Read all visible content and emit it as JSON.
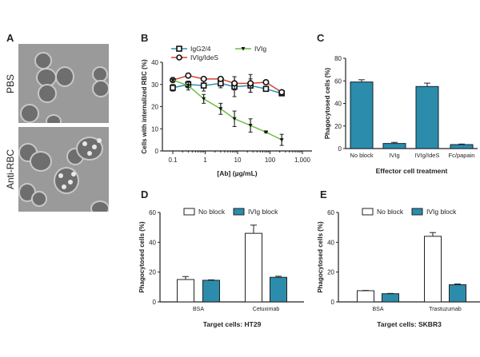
{
  "panels": {
    "a": "A",
    "b": "B",
    "c": "C",
    "d": "D",
    "e": "E"
  },
  "panel_a": {
    "row_labels": [
      "PBS",
      "Anti-RBC"
    ]
  },
  "colors": {
    "teal": "#2a8fb0",
    "red": "#d9412c",
    "green": "#6cbf3f",
    "bar_blue": "#2c8cab",
    "axis": "#222222"
  },
  "chart_data": [
    {
      "id": "B",
      "type": "line",
      "xscale": "log",
      "xlabel": "[Ab] (µg/mL)",
      "ylabel": "Cells with internalized RBC (%)",
      "xticks": [
        "0.1",
        "1",
        "10",
        "100",
        "1,000"
      ],
      "xlim": [
        0.07,
        1000
      ],
      "ylim": [
        0,
        40
      ],
      "yticks": [
        "0",
        "10",
        "20",
        "30",
        "40"
      ],
      "legend_placement": "top",
      "x": [
        0.1,
        0.3,
        0.9,
        3,
        8,
        25,
        75,
        230
      ],
      "series": [
        {
          "name": "IgG2/4",
          "color": "#2a8fb0",
          "marker": "open-square",
          "values": [
            28.5,
            30,
            29.5,
            30.5,
            29,
            29.5,
            28,
            26
          ],
          "errors": [
            1.5,
            1.5,
            2.5,
            2,
            4.5,
            3,
            0.5,
            0.8
          ]
        },
        {
          "name": "IVIg/IdeS",
          "color": "#d9412c",
          "marker": "open-circle",
          "values": [
            32,
            34,
            32.5,
            32.5,
            30.5,
            30.5,
            31,
            26.5
          ],
          "errors": [
            0.5,
            0.5,
            0.5,
            0.5,
            3,
            4,
            0.5,
            0.5
          ]
        },
        {
          "name": "IVIg",
          "color": "#6cbf3f",
          "marker": "filled-triangle",
          "values": [
            32,
            29.5,
            23.5,
            19,
            14.5,
            11.5,
            8.5,
            5
          ],
          "errors": [
            0.5,
            2,
            2,
            2.5,
            3.5,
            3,
            0.3,
            2.5
          ]
        }
      ]
    },
    {
      "id": "C",
      "type": "bar",
      "xlabel": "Effector cell treatment",
      "ylabel": "Phagocytosed cells (%)",
      "categories": [
        "No block",
        "IVIg",
        "IVIg/IdeS",
        "Fc/papain"
      ],
      "values": [
        59,
        4.5,
        55,
        3.5
      ],
      "errors": [
        2,
        1,
        3,
        0.5
      ],
      "ylim": [
        0,
        80
      ],
      "yticks": [
        "0",
        "20",
        "40",
        "60",
        "80"
      ]
    },
    {
      "id": "D",
      "type": "bar",
      "xlabel": "Target cells: HT29",
      "ylabel": "Phagocytosed cells (%)",
      "categories": [
        "BSA",
        "Cetuximab"
      ],
      "ylim": [
        0,
        60
      ],
      "yticks": [
        "0",
        "20",
        "40",
        "60"
      ],
      "legend_placement": "top",
      "series": [
        {
          "name": "No block",
          "fill": "#ffffff",
          "values": [
            15,
            46
          ],
          "errors": [
            2,
            5.5
          ]
        },
        {
          "name": "IVIg block",
          "fill": "#2c8cab",
          "values": [
            14.5,
            16.5
          ],
          "errors": [
            0.3,
            0.7
          ]
        }
      ]
    },
    {
      "id": "E",
      "type": "bar",
      "xlabel": "Target cells: SKBR3",
      "ylabel": "Phagocytosed cells (%)",
      "categories": [
        "BSA",
        "Trastuzumab"
      ],
      "ylim": [
        0,
        60
      ],
      "yticks": [
        "0",
        "20",
        "40",
        "60"
      ],
      "legend_placement": "top",
      "series": [
        {
          "name": "No block",
          "fill": "#ffffff",
          "values": [
            7.5,
            44
          ],
          "errors": [
            0.2,
            2.5
          ]
        },
        {
          "name": "IVIg block",
          "fill": "#2c8cab",
          "values": [
            5.5,
            11.5
          ],
          "errors": [
            0.2,
            0.5
          ]
        }
      ]
    }
  ]
}
